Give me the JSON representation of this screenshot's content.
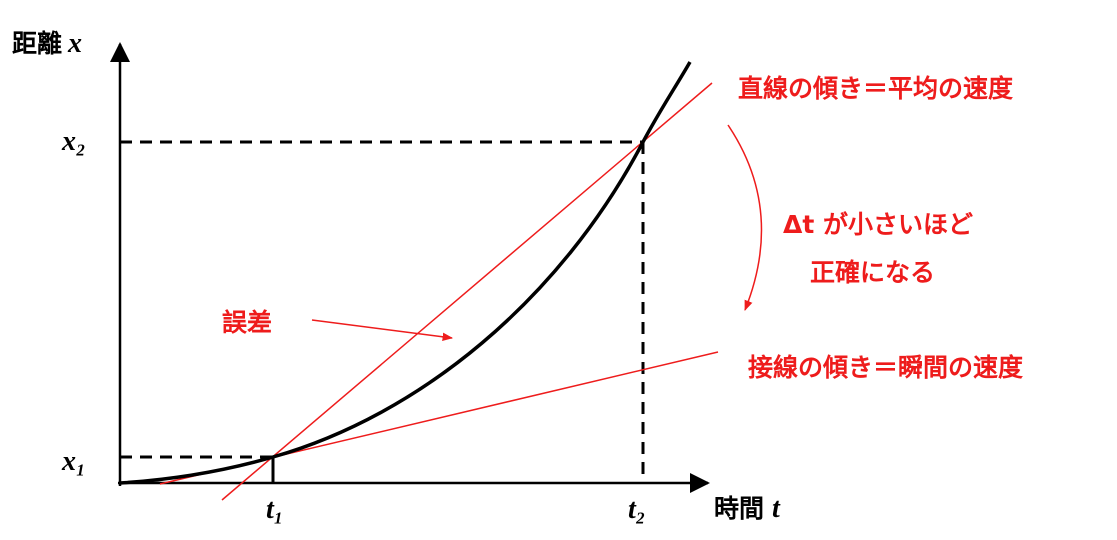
{
  "axes": {
    "y_label": "距離",
    "y_variable": "x",
    "x_label": "時間",
    "x_variable": "t",
    "y_ticks": [
      "x₂",
      "x₁"
    ],
    "x_ticks": [
      "t₁",
      "t₂"
    ]
  },
  "annotations": {
    "secant": "直線の傾き＝平均の速度",
    "note_line1": "Δt が小さいほど",
    "note_line2": "正確になる",
    "error": "誤差",
    "tangent": "接線の傾き＝瞬間の速度"
  }
}
